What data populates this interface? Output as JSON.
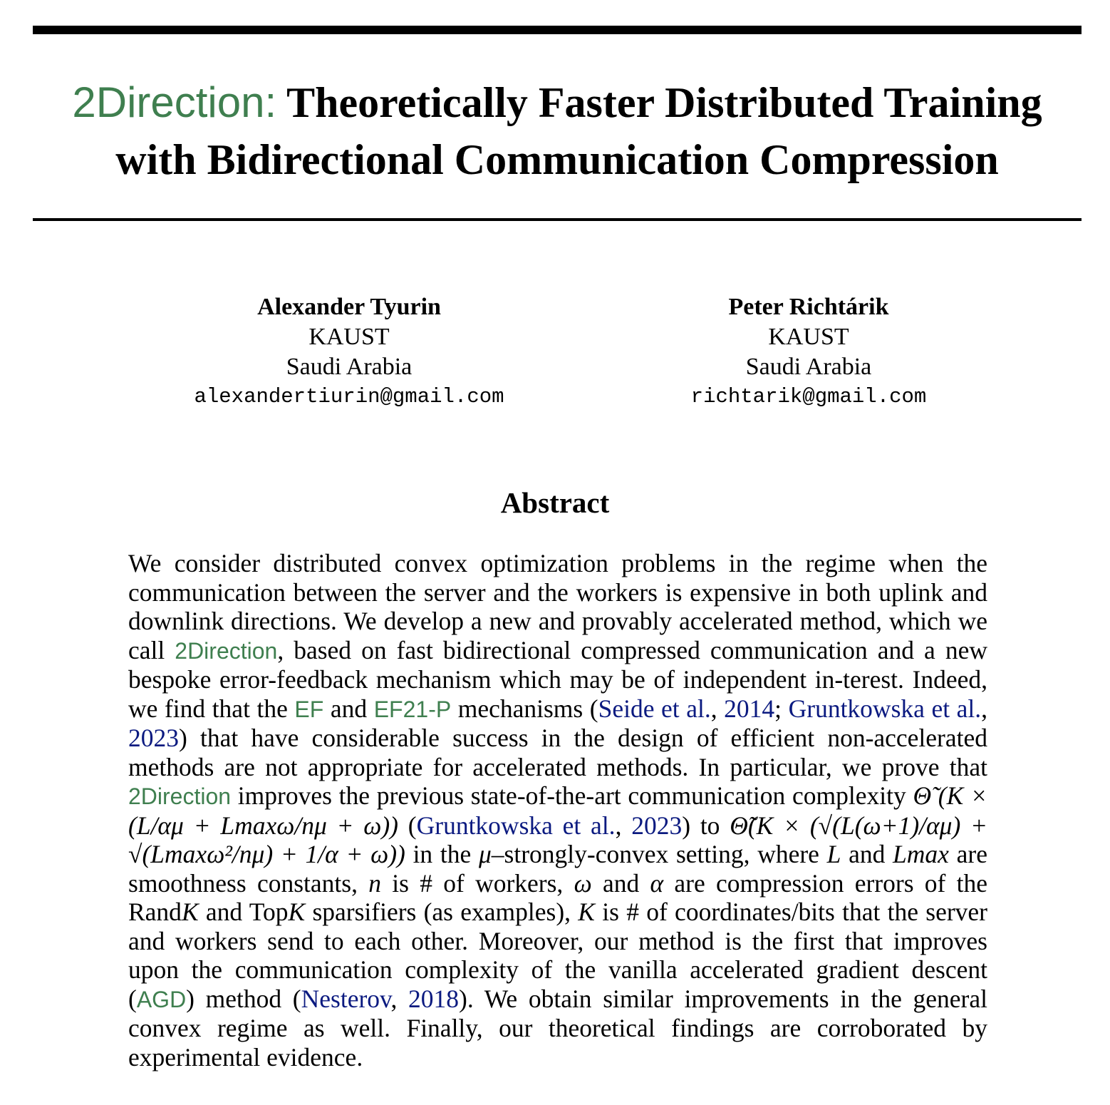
{
  "paper": {
    "title": {
      "method": "2Direction:",
      "line1_rest": " Theoretically Faster Distributed Training",
      "line2": "with Bidirectional Communication Compression"
    },
    "authors": [
      {
        "name": "Alexander Tyurin",
        "affiliation": "KAUST",
        "country": "Saudi Arabia",
        "email": "alexandertiurin@gmail.com"
      },
      {
        "name": "Peter Richtárik",
        "affiliation": "KAUST",
        "country": "Saudi Arabia",
        "email": "richtarik@gmail.com"
      }
    ],
    "abstract_heading": "Abstract",
    "abstract": {
      "p01": "We consider distributed convex optimization problems in the regime when the communication between the server and the workers is expensive in both uplink and downlink directions. We develop a new and provably accelerated method, which we call ",
      "method1": "2Direction",
      "p02": ", based on fast bidirectional compressed communication and a new bespoke error-feedback mechanism which may be of independent in-­terest. Indeed, we find that the ",
      "ef": "EF",
      "and1": " and ",
      "ef21p": "EF21-P",
      "p03": " mechanisms (",
      "cite_seide": "Seide et al.",
      "comma1": ", ",
      "year_2014": "2014",
      "semi": "; ",
      "cite_grunt1": "Gruntkowska et al.",
      "comma2": ", ",
      "year_2023a": "2023",
      "p04": ") that have considerable success in the design of efficient non-accelerated methods are not appropriate for accelerated methods. In partic­ular, we prove that ",
      "method2": "2Direction",
      "p05": " improves the previous state-of-the-art communica­tion complexity ",
      "math_prev": "Θ̃ (K × (L/αμ + Lmaxω/nμ + ω))",
      "p06": " (",
      "cite_grunt2": "Gruntkowska et al.",
      "comma3": ", ",
      "year_2023b": "2023",
      "p07": ") to ",
      "math_new": "Θ̃(K × (√(L(ω+1)/αμ) + √(Lmaxω²/nμ) + 1/α + ω))",
      "p08": " in the ",
      "mu": "μ",
      "p09": "–strongly-convex set­ting, where ",
      "L": "L",
      "and2": " and ",
      "Lmax": "Lmax",
      "p10": " are smoothness constants, ",
      "n": "n",
      "p11": " is # of workers, ",
      "omega": "ω",
      "and3": " and ",
      "alpha": "α",
      "p12": " are compression errors of the Rand",
      "K1": "K",
      "p13": " and Top",
      "K2": "K",
      "p14": " sparsifiers (as examples), ",
      "K3": "K",
      "p15": " is # of coordinates/bits that the server and workers send to each other. Moreover, our method is the first that improves upon the communication complexity of the vanilla accelerated gradient descent (",
      "agd": "AGD",
      "p16": ") method (",
      "cite_nesterov": "Nesterov",
      "comma4": ", ",
      "year_2018": "2018",
      "p17": "). We obtain similar improvements in the general convex regime as well. Finally, our theoreti­cal findings are corroborated by experimental evidence."
    }
  }
}
